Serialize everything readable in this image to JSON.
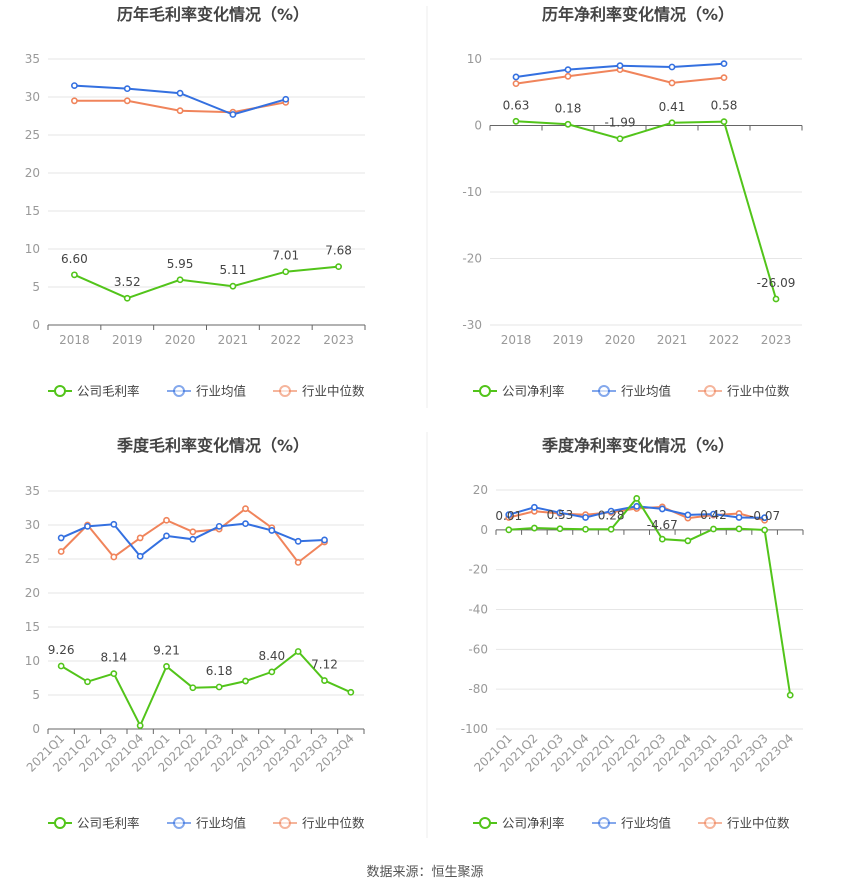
{
  "source_label": "数据来源：恒生聚源",
  "colors": {
    "company": "#52c41a",
    "industry_avg": "#3470e0",
    "industry_median": "#f0845b",
    "grid": "#e6e6e6",
    "axis_text": "#999999",
    "label_text": "#444444",
    "title_text": "#444444"
  },
  "chart_data": [
    {
      "type": "line",
      "title": "历年毛利率变化情况（%）",
      "categories": [
        "2018",
        "2019",
        "2020",
        "2021",
        "2022",
        "2023"
      ],
      "ylim": [
        0,
        35
      ],
      "yticks": [
        0,
        5,
        10,
        15,
        20,
        25,
        30,
        35
      ],
      "series": [
        {
          "name": "公司毛利率",
          "role": "company",
          "values": [
            6.6,
            3.52,
            5.95,
            5.11,
            7.01,
            7.68
          ],
          "labels": [
            "6.60",
            "3.52",
            "5.95",
            "5.11",
            "7.01",
            "7.68"
          ]
        },
        {
          "name": "行业均值",
          "role": "industry_avg",
          "values": [
            31.5,
            31.1,
            30.5,
            27.7,
            29.7,
            null
          ]
        },
        {
          "name": "行业中位数",
          "role": "industry_median",
          "values": [
            29.5,
            29.5,
            28.2,
            28.0,
            29.3,
            null
          ]
        }
      ]
    },
    {
      "type": "line",
      "title": "历年净利率变化情况（%）",
      "categories": [
        "2018",
        "2019",
        "2020",
        "2021",
        "2022",
        "2023"
      ],
      "ylim": [
        -30,
        10
      ],
      "yticks": [
        -30,
        -20,
        -10,
        0,
        10
      ],
      "series": [
        {
          "name": "公司净利率",
          "role": "company",
          "values": [
            0.63,
            0.18,
            -1.99,
            0.41,
            0.58,
            -26.09
          ],
          "labels": [
            "0.63",
            "0.18",
            "-1.99",
            "0.41",
            "0.58",
            "-26.09"
          ]
        },
        {
          "name": "行业均值",
          "role": "industry_avg",
          "values": [
            7.3,
            8.4,
            9.0,
            8.8,
            9.3,
            null
          ]
        },
        {
          "name": "行业中位数",
          "role": "industry_median",
          "values": [
            6.3,
            7.4,
            8.4,
            6.4,
            7.2,
            null
          ]
        }
      ]
    },
    {
      "type": "line",
      "title": "季度毛利率变化情况（%）",
      "categories": [
        "2021Q1",
        "2021Q2",
        "2021Q3",
        "2021Q4",
        "2022Q1",
        "2022Q2",
        "2022Q3",
        "2022Q4",
        "2023Q1",
        "2023Q2",
        "2023Q3",
        "2023Q4"
      ],
      "ylim": [
        0,
        35
      ],
      "yticks": [
        0,
        5,
        10,
        15,
        20,
        25,
        30,
        35
      ],
      "series": [
        {
          "name": "公司毛利率",
          "role": "company",
          "values": [
            9.26,
            6.95,
            8.14,
            0.5,
            9.21,
            6.07,
            6.18,
            7.05,
            8.4,
            11.4,
            7.12,
            5.4
          ],
          "labels": [
            "9.26",
            "",
            "8.14",
            "",
            "9.21",
            "",
            "6.18",
            "",
            "8.40",
            "",
            "7.12",
            ""
          ]
        },
        {
          "name": "行业均值",
          "role": "industry_avg",
          "values": [
            28.1,
            29.8,
            30.1,
            25.4,
            28.4,
            27.9,
            29.8,
            30.2,
            29.2,
            27.6,
            27.8,
            null
          ]
        },
        {
          "name": "行业中位数",
          "role": "industry_median",
          "values": [
            26.1,
            30.0,
            25.3,
            28.1,
            30.7,
            29.0,
            29.4,
            32.4,
            29.6,
            24.5,
            27.5,
            null
          ]
        }
      ]
    },
    {
      "type": "line",
      "title": "季度净利率变化情况（%）",
      "categories": [
        "2021Q1",
        "2021Q2",
        "2021Q3",
        "2021Q4",
        "2022Q1",
        "2022Q2",
        "2022Q3",
        "2022Q4",
        "2023Q1",
        "2023Q2",
        "2023Q3",
        "2023Q4"
      ],
      "ylim": [
        -100,
        20
      ],
      "yticks": [
        -100,
        -80,
        -60,
        -40,
        -20,
        0,
        20
      ],
      "series": [
        {
          "name": "公司净利率",
          "role": "company",
          "values": [
            0.01,
            0.9,
            0.53,
            0.3,
            0.28,
            15.8,
            -4.67,
            -5.5,
            0.42,
            0.5,
            -0.07,
            -83.0
          ],
          "labels": [
            "0.01",
            "",
            "0.53",
            "",
            "0.28",
            "",
            "-4.67",
            "",
            "0.42",
            "",
            "-0.07",
            ""
          ]
        },
        {
          "name": "行业均值",
          "role": "industry_avg",
          "values": [
            7.6,
            11.3,
            8.6,
            6.2,
            9.4,
            11.8,
            10.5,
            7.5,
            7.9,
            6.2,
            6.1,
            null
          ]
        },
        {
          "name": "行业中位数",
          "role": "industry_median",
          "values": [
            6.2,
            9.3,
            8.2,
            7.6,
            8.8,
            10.7,
            11.5,
            5.9,
            7.4,
            8.2,
            4.8,
            null
          ]
        }
      ]
    }
  ]
}
